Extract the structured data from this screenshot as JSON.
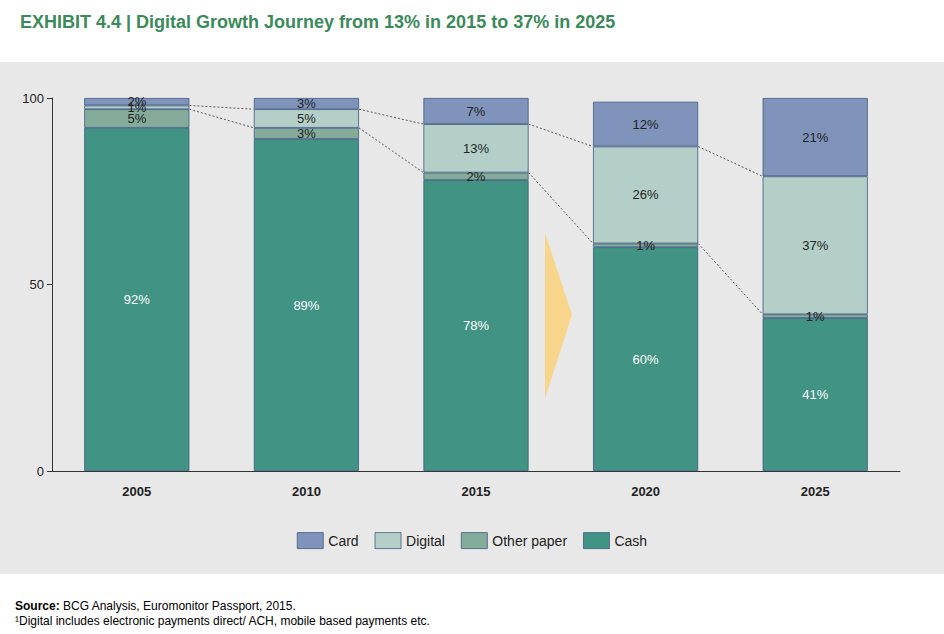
{
  "chart_data": {
    "type": "bar",
    "title": "EXHIBIT 4.4 | Digital Growth Journey from 13% in 2015 to 37% in 2025",
    "categories": [
      "2005",
      "2010",
      "2015",
      "2020",
      "2025"
    ],
    "series": [
      {
        "name": "Card",
        "color": "#7f93bb",
        "values": [
          2,
          3,
          7,
          12,
          21
        ],
        "value_labels": [
          "2%",
          "3%",
          "7%",
          "12%",
          "21%"
        ]
      },
      {
        "name": "Digital",
        "color": "#b4cfc7",
        "values": [
          1,
          5,
          13,
          26,
          37
        ],
        "value_labels": [
          "1%",
          "5%",
          "13%",
          "26%",
          "37%"
        ]
      },
      {
        "name": "Other paper",
        "color": "#85ab9a",
        "values": [
          5,
          3,
          2,
          1,
          1
        ],
        "value_labels": [
          "5%",
          "3%",
          "2%",
          "1%",
          "1%"
        ]
      },
      {
        "name": "Cash",
        "color": "#419384",
        "values": [
          92,
          89,
          78,
          60,
          41
        ],
        "value_labels": [
          "92%",
          "89%",
          "78%",
          "60%",
          "41%"
        ]
      }
    ],
    "ylim": [
      0,
      100
    ],
    "yticks": [
      0,
      50,
      100
    ],
    "stacked": true,
    "data_labels": true,
    "legend": "bottom",
    "grid": false,
    "notes": [
      "Source: BCG Analysis, Euromonitor Passport, 2015.",
      "¹Digital includes electronic payments direct/ ACH, mobile based payments etc."
    ]
  }
}
